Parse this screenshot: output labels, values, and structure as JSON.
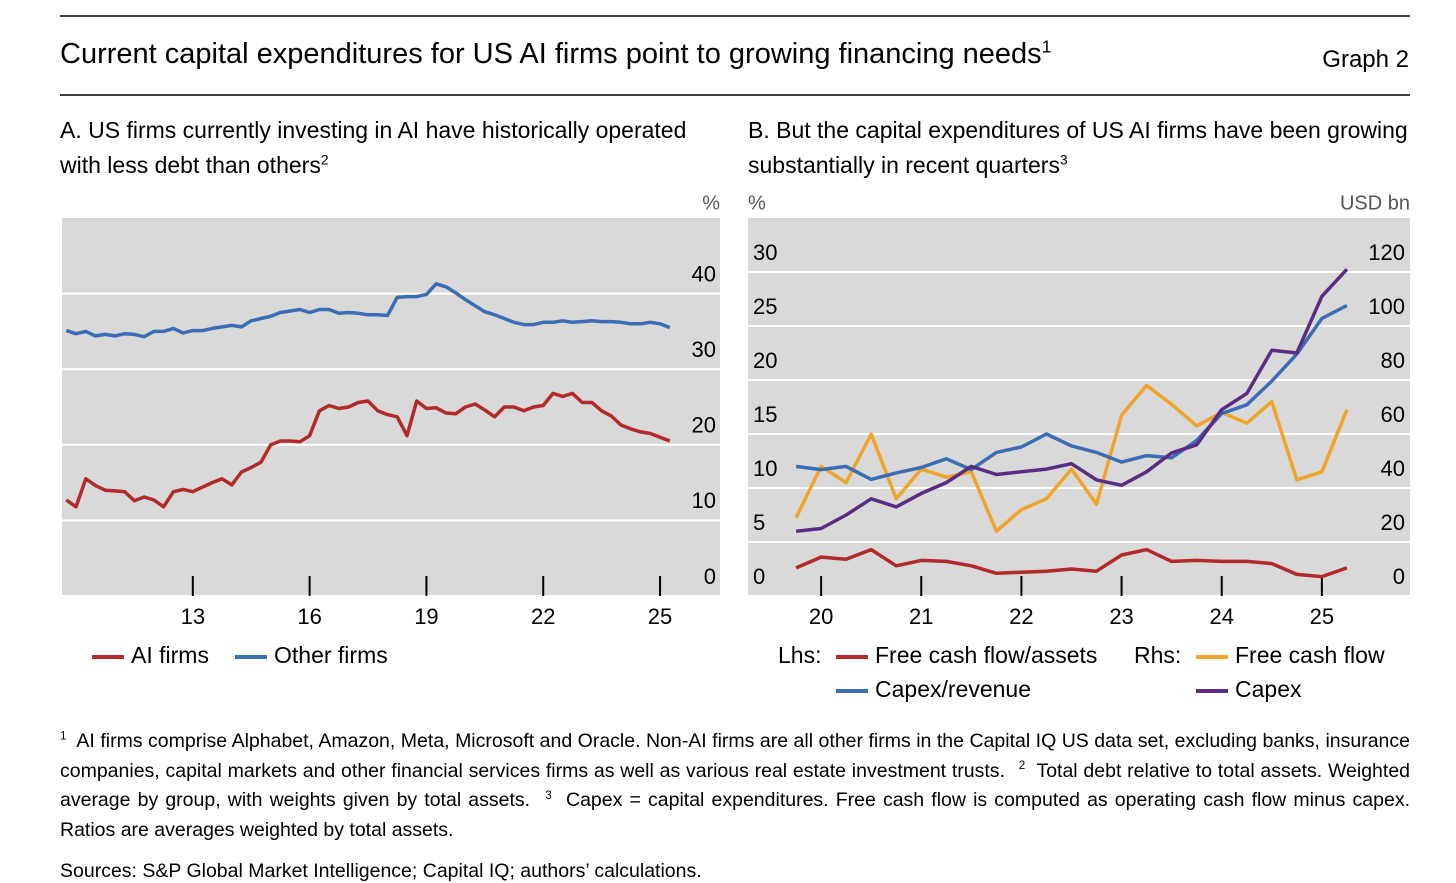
{
  "header": {
    "title": "Current capital expenditures for US AI firms point to growing financing needs",
    "title_note": "1",
    "graph_label": "Graph 2"
  },
  "chart_data": [
    {
      "type": "line",
      "title": "A. US firms currently investing in AI have historically operated with less debt than others",
      "title_note": "2",
      "y_unit": "%",
      "x": [
        9.75,
        10,
        10.25,
        10.5,
        10.75,
        11,
        11.25,
        11.5,
        11.75,
        12,
        12.25,
        12.5,
        12.75,
        13,
        13.25,
        13.5,
        13.75,
        14,
        14.25,
        14.5,
        14.75,
        15,
        15.25,
        15.5,
        15.75,
        16,
        16.25,
        16.5,
        16.75,
        17,
        17.25,
        17.5,
        17.75,
        18,
        18.25,
        18.5,
        18.75,
        19,
        19.25,
        19.5,
        19.75,
        20,
        20.25,
        20.5,
        20.75,
        21,
        21.25,
        21.5,
        21.75,
        22,
        22.25,
        22.5,
        22.75,
        23,
        23.25,
        23.5,
        23.75,
        24,
        24.25,
        24.5,
        24.75,
        25,
        25.25
      ],
      "xlim": [
        9.64,
        26.54
      ],
      "xticks": [
        13,
        16,
        19,
        22,
        25
      ],
      "ylim": [
        0,
        50
      ],
      "yticks": [
        0,
        10,
        20,
        30,
        40
      ],
      "grid": true,
      "series": [
        {
          "name": "AI firms",
          "color": "#b32a2a",
          "values": [
            12.7,
            11.8,
            15.5,
            14.6,
            14.0,
            13.9,
            13.8,
            12.6,
            13.1,
            12.7,
            11.8,
            13.8,
            14.1,
            13.8,
            14.4,
            15.0,
            15.5,
            14.7,
            16.4,
            17.0,
            17.7,
            20.0,
            20.5,
            20.5,
            20.4,
            21.2,
            24.5,
            25.2,
            24.8,
            25.0,
            25.6,
            25.8,
            24.5,
            24.0,
            23.7,
            21.2,
            25.8,
            24.8,
            24.9,
            24.2,
            24.1,
            25.0,
            25.4,
            24.6,
            23.7,
            25.0,
            25.0,
            24.5,
            25.0,
            25.2,
            26.8,
            26.4,
            26.8,
            25.6,
            25.6,
            24.5,
            23.8,
            22.6,
            22.1,
            21.7,
            21.5,
            21.0,
            20.5
          ]
        },
        {
          "name": "Other firms",
          "color": "#3b6db5",
          "values": [
            35.1,
            34.7,
            35,
            34.4,
            34.6,
            34.4,
            34.7,
            34.6,
            34.3,
            35,
            35,
            35.4,
            34.8,
            35.1,
            35.1,
            35.4,
            35.6,
            35.8,
            35.6,
            36.4,
            36.7,
            37,
            37.5,
            37.7,
            37.9,
            37.5,
            37.9,
            37.9,
            37.4,
            37.5,
            37.4,
            37.2,
            37.2,
            37.1,
            39.5,
            39.6,
            39.6,
            39.9,
            41.3,
            40.9,
            40.1,
            39.2,
            38.4,
            37.6,
            37.2,
            36.7,
            36.2,
            35.9,
            35.9,
            36.2,
            36.2,
            36.4,
            36.2,
            36.3,
            36.4,
            36.3,
            36.3,
            36.2,
            36,
            36,
            36.2,
            36,
            35.5
          ]
        }
      ]
    },
    {
      "type": "line",
      "title": "B. But the capital expenditures of US AI firms have been growing substantially in recent quarters",
      "title_note": "3",
      "y_unit": "%",
      "y2_unit": "USD bn",
      "legend_lhs": "Lhs:",
      "legend_rhs": "Rhs:",
      "x": [
        19.75,
        20,
        20.25,
        20.5,
        20.75,
        21,
        21.25,
        21.5,
        21.75,
        22,
        22.25,
        22.5,
        22.75,
        23,
        23.25,
        23.5,
        23.75,
        24,
        24.25,
        24.5,
        24.75,
        25,
        25.25
      ],
      "xlim": [
        19.27,
        25.88
      ],
      "xticks": [
        20,
        21,
        22,
        23,
        24,
        25
      ],
      "ylim": [
        0,
        35
      ],
      "yticks": [
        0,
        5,
        10,
        15,
        20,
        25,
        30
      ],
      "y2lim": [
        0,
        140
      ],
      "y2ticks": [
        0,
        20,
        40,
        60,
        80,
        100,
        120
      ],
      "grid": true,
      "series": [
        {
          "name": "Free cash flow/assets",
          "color": "#b32a2a",
          "values": [
            2.6,
            3.6,
            3.4,
            4.3,
            2.8,
            3.3,
            3.2,
            2.8,
            2.1,
            2.2,
            2.3,
            2.5,
            2.3,
            3.8,
            4.3,
            3.2,
            3.3,
            3.2,
            3.2,
            3.0,
            2.0,
            1.8,
            2.6
          ]
        },
        {
          "name": "Free cash flow",
          "color": "#f0a52a",
          "axis": "y2",
          "values": [
            29,
            48,
            42,
            60,
            36,
            47,
            44,
            46,
            24,
            32,
            36,
            47,
            34,
            67,
            78,
            71,
            63,
            68,
            64,
            72,
            43,
            46,
            69
          ]
        },
        {
          "name": "Capex/revenue",
          "color": "#3b6db5",
          "values": [
            12,
            11.7,
            12,
            10.8,
            11.4,
            11.9,
            12.7,
            11.7,
            13.3,
            13.8,
            15,
            13.9,
            13.3,
            12.4,
            13,
            12.8,
            14.4,
            16.9,
            17.7,
            19.9,
            22.4,
            25.7,
            26.9
          ]
        },
        {
          "name": "Capex",
          "color": "#5b2d82",
          "axis": "y2",
          "values": [
            24,
            25,
            30,
            36,
            33,
            38,
            42,
            48,
            45,
            46,
            47,
            49,
            43,
            41,
            46,
            53,
            56,
            69,
            75,
            91,
            90,
            111,
            121
          ]
        }
      ]
    }
  ],
  "footnotes": [
    {
      "mark": "1",
      "text": "AI firms comprise Alphabet, Amazon, Meta, Microsoft and Oracle. Non-AI firms are all other firms in the Capital IQ US data set, excluding banks, insurance companies, capital markets and other financial services firms as well as various real estate investment trusts."
    },
    {
      "mark": "2",
      "text": "Total debt relative to total assets. Weighted average by group, with weights given by total assets."
    },
    {
      "mark": "3",
      "text": "Capex = capital expenditures. Free cash flow is computed as operating cash flow minus capex. Ratios are averages weighted by total assets."
    }
  ],
  "sources": "Sources: S&P Global Market Intelligence; Capital IQ; authors’ calculations."
}
